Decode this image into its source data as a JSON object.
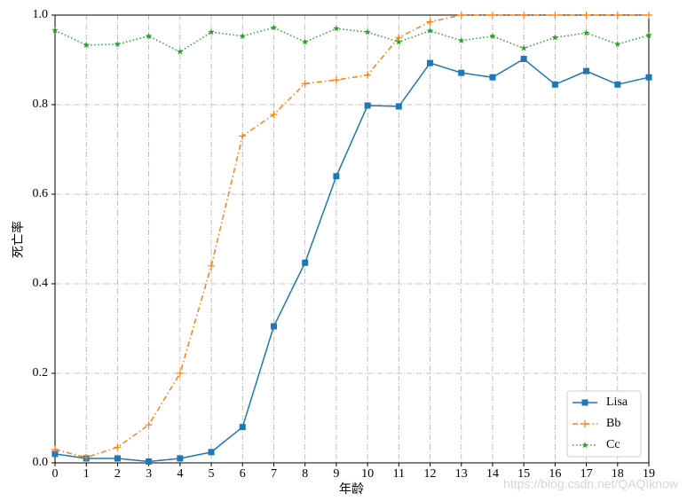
{
  "chart_data": {
    "type": "line",
    "xlabel": "年龄",
    "ylabel": "死亡率",
    "x": [
      0,
      1,
      2,
      3,
      4,
      5,
      6,
      7,
      8,
      9,
      10,
      11,
      12,
      13,
      14,
      15,
      16,
      17,
      18,
      19
    ],
    "xlim": [
      0,
      19
    ],
    "xticks": [
      0,
      1,
      2,
      3,
      4,
      5,
      6,
      7,
      8,
      9,
      10,
      11,
      12,
      13,
      14,
      15,
      16,
      17,
      18,
      19
    ],
    "ylim": [
      0,
      1
    ],
    "yticks": [
      {
        "value": 0,
        "label": "0.0"
      },
      0.2,
      0.4,
      0.6,
      0.8,
      {
        "value": 1,
        "label": "1.0"
      }
    ],
    "grid": true,
    "legend": "lower right",
    "series": [
      {
        "name": "Lisa",
        "color": "#1f77b4",
        "linestyle": "solid",
        "marker": "square",
        "values": [
          0.02,
          0.01,
          0.01,
          0.003,
          0.01,
          0.024,
          0.08,
          0.305,
          0.447,
          0.64,
          0.798,
          0.796,
          0.893,
          0.871,
          0.861,
          0.902,
          0.845,
          0.875,
          0.845,
          0.861
        ]
      },
      {
        "name": "Bb",
        "color": "#ff7f0e",
        "linestyle": "dashdot",
        "marker": "plus",
        "values": [
          0.03,
          0.012,
          0.035,
          0.085,
          0.2,
          0.44,
          0.73,
          0.778,
          0.847,
          0.855,
          0.866,
          0.95,
          0.985,
          1.0,
          1.0,
          1.0,
          1.0,
          1.0,
          1.0,
          1.0
        ]
      },
      {
        "name": "Cc",
        "color": "#2ca02c",
        "linestyle": "dotted",
        "marker": "star",
        "values": [
          0.966,
          0.933,
          0.935,
          0.953,
          0.918,
          0.962,
          0.953,
          0.972,
          0.94,
          0.97,
          0.962,
          0.94,
          0.965,
          0.943,
          0.953,
          0.926,
          0.95,
          0.96,
          0.935,
          0.955
        ]
      }
    ],
    "watermark": "https://blog.csdn.net/QAQIknow"
  }
}
